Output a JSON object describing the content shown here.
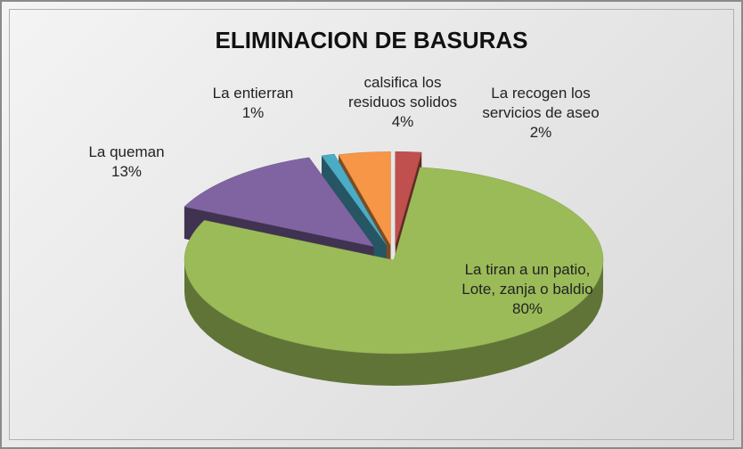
{
  "chart_data": {
    "type": "pie3d",
    "title": "ELIMINACION DE BASURAS",
    "categories": [
      "La recogen los servicios de aseo",
      "La tiran a un patio, Lote, zanja o baldio",
      "La queman",
      "La entierran",
      "calsifica los residuos solidos"
    ],
    "values": [
      2,
      80,
      13,
      1,
      4
    ],
    "value_labels": [
      "2%",
      "80%",
      "13%",
      "1%",
      "4%"
    ],
    "colors": [
      "#c0504d",
      "#9bbb59",
      "#8064a2",
      "#4bacc6",
      "#f79646"
    ]
  }
}
